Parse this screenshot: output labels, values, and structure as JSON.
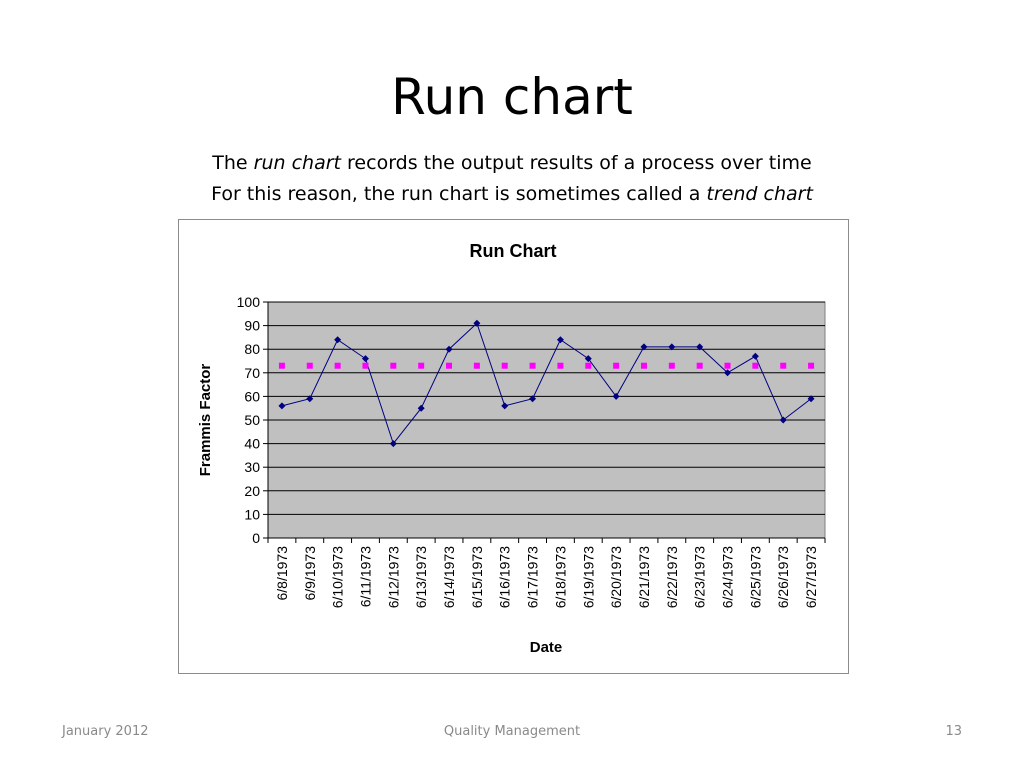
{
  "slide": {
    "title": "Run chart",
    "subtitle_line1": {
      "pre": "The ",
      "em": "run chart",
      "post": " records the output results of a process over time"
    },
    "subtitle_line2": {
      "pre": "For this reason, the run chart is sometimes called a ",
      "em": "trend chart"
    }
  },
  "footer": {
    "left": "January 2012",
    "center": "Quality Management",
    "right": "13"
  },
  "chart_data": {
    "type": "line",
    "title": "Run Chart",
    "xlabel": "Date",
    "ylabel": "Frammis Factor",
    "ylim": [
      0,
      100
    ],
    "yticks": [
      0,
      10,
      20,
      30,
      40,
      50,
      60,
      70,
      80,
      90,
      100
    ],
    "grid": true,
    "legend": "none",
    "plot_background": "#c0c0c0",
    "categories": [
      "6/8/1973",
      "6/9/1973",
      "6/10/1973",
      "6/11/1973",
      "6/12/1973",
      "6/13/1973",
      "6/14/1973",
      "6/15/1973",
      "6/16/1973",
      "6/17/1973",
      "6/18/1973",
      "6/19/1973",
      "6/20/1973",
      "6/21/1973",
      "6/22/1973",
      "6/23/1973",
      "6/24/1973",
      "6/25/1973",
      "6/26/1973",
      "6/27/1973"
    ],
    "series": [
      {
        "values": [
          56,
          59,
          84,
          76,
          40,
          55,
          80,
          91,
          56,
          59,
          84,
          76,
          60,
          81,
          81,
          81,
          70,
          77,
          50,
          59
        ],
        "color": "#000080",
        "marker": "diamond"
      },
      {
        "values": [
          73,
          73,
          73,
          73,
          73,
          73,
          73,
          73,
          73,
          73,
          73,
          73,
          73,
          73,
          73,
          73,
          73,
          73,
          73,
          73
        ],
        "color": "#ff00ff",
        "marker": "square",
        "line": "none"
      }
    ]
  }
}
